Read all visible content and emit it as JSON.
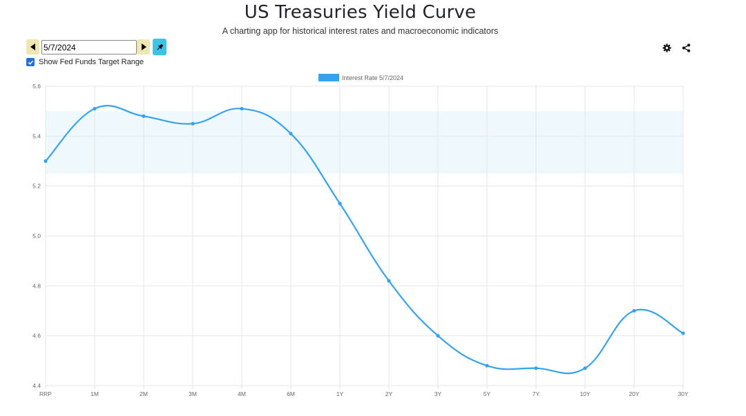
{
  "header": {
    "title": "US Treasuries Yield Curve",
    "subtitle": "A charting app for historical interest rates and macroeconomic indicators"
  },
  "controls": {
    "date_value": "5/7/2024",
    "show_fed_funds_label": "Show Fed Funds Target Range",
    "show_fed_funds_checked": true
  },
  "icons": {
    "prev": "caret-left-icon",
    "next": "caret-right-icon",
    "pin": "pin-icon",
    "settings": "gear-icon",
    "share": "share-icon"
  },
  "colors": {
    "line": "#36a2eb",
    "fed_band": "#eef8fd",
    "prev_next_bg": "#f0e6b2",
    "pin_bg": "#3ec3e8",
    "checkbox": "#1f6fe0"
  },
  "chart_data": {
    "type": "line",
    "categories": [
      "RRP",
      "1M",
      "2M",
      "3M",
      "4M",
      "6M",
      "1Y",
      "2Y",
      "3Y",
      "5Y",
      "7Y",
      "10Y",
      "20Y",
      "30Y"
    ],
    "series": [
      {
        "name": "Interest Rate 5/7/2024",
        "values": [
          5.3,
          5.51,
          5.48,
          5.45,
          5.51,
          5.41,
          5.13,
          4.82,
          4.6,
          4.48,
          4.47,
          4.47,
          4.7,
          4.61
        ]
      }
    ],
    "fed_funds_range": [
      5.25,
      5.5
    ],
    "ylim": [
      4.4,
      5.6
    ],
    "yticks": [
      "4.4",
      "4.6",
      "4.8",
      "5.0",
      "5.2",
      "5.4",
      "5.6"
    ],
    "grid": true,
    "legend": "top-center",
    "title": "",
    "xlabel": "",
    "ylabel": ""
  }
}
